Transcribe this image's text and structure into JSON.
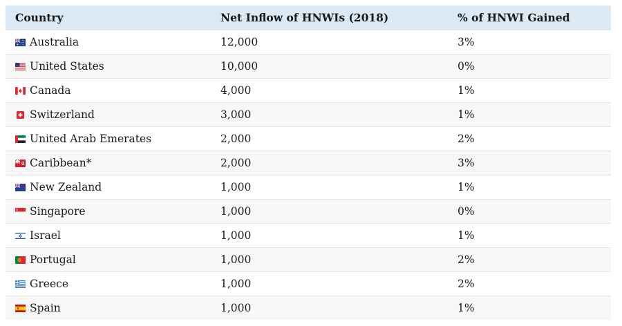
{
  "headers": {
    "country": "Country",
    "inflow": "Net Inflow of HNWIs (2018)",
    "gained": "% of HNWI Gained"
  },
  "rows": [
    {
      "country": "Australia",
      "flag": "australia-flag-icon",
      "inflow": "12,000",
      "gained": "3%"
    },
    {
      "country": "United States",
      "flag": "united-states-flag-icon",
      "inflow": "10,000",
      "gained": "0%"
    },
    {
      "country": "Canada",
      "flag": "canada-flag-icon",
      "inflow": "4,000",
      "gained": "1%"
    },
    {
      "country": "Switzerland",
      "flag": "switzerland-flag-icon",
      "inflow": "3,000",
      "gained": "1%"
    },
    {
      "country": "United Arab Emerates",
      "flag": "uae-flag-icon",
      "inflow": "2,000",
      "gained": "2%"
    },
    {
      "country": "Caribbean*",
      "flag": "caribbean-flag-icon",
      "inflow": "2,000",
      "gained": "3%"
    },
    {
      "country": "New Zealand",
      "flag": "new-zealand-flag-icon",
      "inflow": "1,000",
      "gained": "1%"
    },
    {
      "country": "Singapore",
      "flag": "singapore-flag-icon",
      "inflow": "1,000",
      "gained": "0%"
    },
    {
      "country": "Israel",
      "flag": "israel-flag-icon",
      "inflow": "1,000",
      "gained": "1%"
    },
    {
      "country": "Portugal",
      "flag": "portugal-flag-icon",
      "inflow": "1,000",
      "gained": "2%"
    },
    {
      "country": "Greece",
      "flag": "greece-flag-icon",
      "inflow": "1,000",
      "gained": "2%"
    },
    {
      "country": "Spain",
      "flag": "spain-flag-icon",
      "inflow": "1,000",
      "gained": "1%"
    }
  ],
  "colors": {
    "header_bg": "#dbe9f5",
    "stripe_bg": "#f7f7f7",
    "border": "#e4e4e4"
  }
}
